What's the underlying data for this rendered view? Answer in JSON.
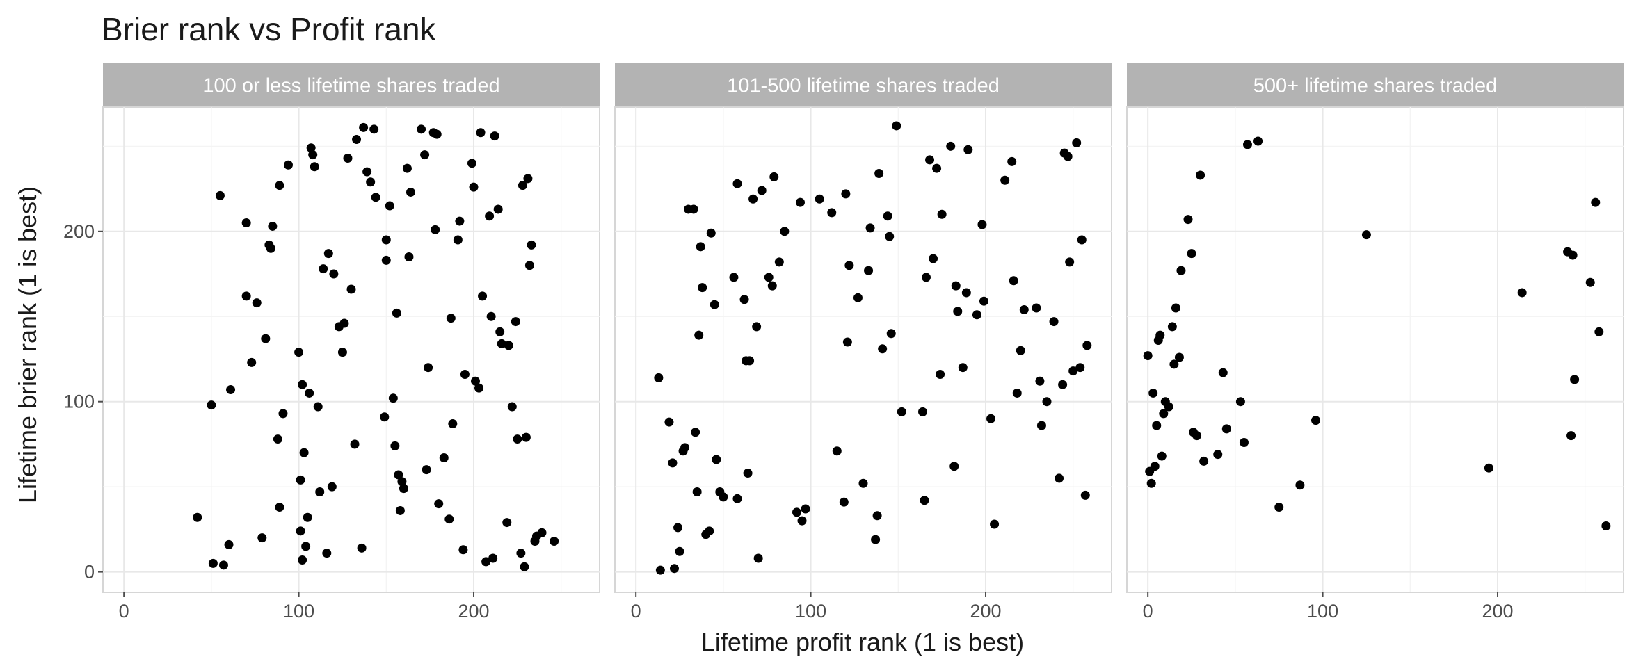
{
  "chart_data": {
    "type": "scatter",
    "title": "Brier rank vs Profit rank",
    "xlabel": "Lifetime profit rank (1 is best)",
    "ylabel": "Lifetime brier rank (1 is best)",
    "xlim": [
      -12,
      272
    ],
    "ylim": [
      -12,
      273
    ],
    "x_ticks": [
      "0",
      "100",
      "200"
    ],
    "y_ticks": [
      "0",
      "100",
      "200"
    ],
    "grid": true,
    "facets": [
      {
        "label": "100 or less lifetime shares traded",
        "points": [
          [
            42,
            32
          ],
          [
            50,
            98
          ],
          [
            51,
            5
          ],
          [
            55,
            221
          ],
          [
            57,
            4
          ],
          [
            60,
            16
          ],
          [
            61,
            107
          ],
          [
            70,
            205
          ],
          [
            70,
            162
          ],
          [
            73,
            123
          ],
          [
            76,
            158
          ],
          [
            79,
            20
          ],
          [
            81,
            137
          ],
          [
            83,
            192
          ],
          [
            84,
            190
          ],
          [
            85,
            203
          ],
          [
            88,
            78
          ],
          [
            89,
            38
          ],
          [
            89,
            227
          ],
          [
            91,
            93
          ],
          [
            94,
            239
          ],
          [
            100,
            129
          ],
          [
            101,
            24
          ],
          [
            101,
            54
          ],
          [
            102,
            110
          ],
          [
            102,
            7
          ],
          [
            103,
            70
          ],
          [
            104,
            15
          ],
          [
            105,
            32
          ],
          [
            106,
            105
          ],
          [
            107,
            249
          ],
          [
            108,
            245
          ],
          [
            109,
            238
          ],
          [
            111,
            97
          ],
          [
            112,
            47
          ],
          [
            114,
            178
          ],
          [
            116,
            11
          ],
          [
            117,
            187
          ],
          [
            119,
            50
          ],
          [
            120,
            175
          ],
          [
            123,
            144
          ],
          [
            125,
            129
          ],
          [
            126,
            146
          ],
          [
            128,
            243
          ],
          [
            130,
            166
          ],
          [
            132,
            75
          ],
          [
            133,
            254
          ],
          [
            136,
            14
          ],
          [
            137,
            261
          ],
          [
            139,
            235
          ],
          [
            141,
            229
          ],
          [
            143,
            260
          ],
          [
            144,
            220
          ],
          [
            149,
            91
          ],
          [
            150,
            183
          ],
          [
            150,
            195
          ],
          [
            152,
            215
          ],
          [
            154,
            102
          ],
          [
            155,
            74
          ],
          [
            156,
            152
          ],
          [
            157,
            57
          ],
          [
            158,
            36
          ],
          [
            159,
            53
          ],
          [
            160,
            49
          ],
          [
            162,
            237
          ],
          [
            163,
            185
          ],
          [
            164,
            223
          ],
          [
            170,
            260
          ],
          [
            172,
            245
          ],
          [
            173,
            60
          ],
          [
            174,
            120
          ],
          [
            177,
            258
          ],
          [
            178,
            201
          ],
          [
            179,
            257
          ],
          [
            180,
            40
          ],
          [
            183,
            67
          ],
          [
            186,
            31
          ],
          [
            187,
            149
          ],
          [
            188,
            87
          ],
          [
            191,
            195
          ],
          [
            192,
            206
          ],
          [
            194,
            13
          ],
          [
            195,
            116
          ],
          [
            199,
            240
          ],
          [
            200,
            226
          ],
          [
            201,
            112
          ],
          [
            203,
            108
          ],
          [
            204,
            258
          ],
          [
            205,
            162
          ],
          [
            207,
            6
          ],
          [
            209,
            209
          ],
          [
            210,
            150
          ],
          [
            211,
            8
          ],
          [
            212,
            256
          ],
          [
            214,
            213
          ],
          [
            215,
            141
          ],
          [
            216,
            134
          ],
          [
            219,
            29
          ],
          [
            220,
            133
          ],
          [
            222,
            97
          ],
          [
            224,
            147
          ],
          [
            225,
            78
          ],
          [
            227,
            11
          ],
          [
            228,
            227
          ],
          [
            229,
            3
          ],
          [
            230,
            79
          ],
          [
            231,
            231
          ],
          [
            232,
            180
          ],
          [
            233,
            192
          ],
          [
            235,
            18
          ],
          [
            236,
            21
          ],
          [
            239,
            23
          ],
          [
            246,
            18
          ]
        ]
      },
      {
        "label": "101-500 lifetime shares traded",
        "points": [
          [
            13,
            114
          ],
          [
            14,
            1
          ],
          [
            19,
            88
          ],
          [
            21,
            64
          ],
          [
            22,
            2
          ],
          [
            24,
            26
          ],
          [
            25,
            12
          ],
          [
            27,
            71
          ],
          [
            28,
            73
          ],
          [
            30,
            213
          ],
          [
            33,
            213
          ],
          [
            34,
            82
          ],
          [
            35,
            47
          ],
          [
            36,
            139
          ],
          [
            37,
            191
          ],
          [
            38,
            167
          ],
          [
            40,
            22
          ],
          [
            42,
            24
          ],
          [
            43,
            199
          ],
          [
            45,
            157
          ],
          [
            46,
            66
          ],
          [
            48,
            47
          ],
          [
            50,
            44
          ],
          [
            56,
            173
          ],
          [
            58,
            228
          ],
          [
            58,
            43
          ],
          [
            62,
            160
          ],
          [
            63,
            124
          ],
          [
            64,
            58
          ],
          [
            65,
            124
          ],
          [
            67,
            219
          ],
          [
            69,
            144
          ],
          [
            70,
            8
          ],
          [
            72,
            224
          ],
          [
            76,
            173
          ],
          [
            78,
            168
          ],
          [
            79,
            232
          ],
          [
            82,
            182
          ],
          [
            85,
            200
          ],
          [
            92,
            35
          ],
          [
            94,
            217
          ],
          [
            95,
            30
          ],
          [
            97,
            37
          ],
          [
            105,
            219
          ],
          [
            112,
            211
          ],
          [
            115,
            71
          ],
          [
            119,
            41
          ],
          [
            120,
            222
          ],
          [
            121,
            135
          ],
          [
            122,
            180
          ],
          [
            127,
            161
          ],
          [
            130,
            52
          ],
          [
            133,
            177
          ],
          [
            134,
            202
          ],
          [
            137,
            19
          ],
          [
            138,
            33
          ],
          [
            139,
            234
          ],
          [
            141,
            131
          ],
          [
            144,
            209
          ],
          [
            145,
            197
          ],
          [
            146,
            140
          ],
          [
            149,
            262
          ],
          [
            152,
            94
          ],
          [
            164,
            94
          ],
          [
            165,
            42
          ],
          [
            166,
            173
          ],
          [
            168,
            242
          ],
          [
            170,
            184
          ],
          [
            172,
            237
          ],
          [
            174,
            116
          ],
          [
            175,
            210
          ],
          [
            180,
            250
          ],
          [
            182,
            62
          ],
          [
            183,
            168
          ],
          [
            184,
            153
          ],
          [
            187,
            120
          ],
          [
            189,
            164
          ],
          [
            190,
            248
          ],
          [
            195,
            151
          ],
          [
            198,
            204
          ],
          [
            199,
            159
          ],
          [
            203,
            90
          ],
          [
            205,
            28
          ],
          [
            211,
            230
          ],
          [
            215,
            241
          ],
          [
            216,
            171
          ],
          [
            218,
            105
          ],
          [
            220,
            130
          ],
          [
            222,
            154
          ],
          [
            229,
            155
          ],
          [
            231,
            112
          ],
          [
            232,
            86
          ],
          [
            235,
            100
          ],
          [
            239,
            147
          ],
          [
            242,
            55
          ],
          [
            244,
            110
          ],
          [
            245,
            246
          ],
          [
            247,
            244
          ],
          [
            248,
            182
          ],
          [
            250,
            118
          ],
          [
            252,
            252
          ],
          [
            254,
            120
          ],
          [
            255,
            195
          ],
          [
            257,
            45
          ],
          [
            258,
            133
          ]
        ]
      },
      {
        "label": "500+ lifetime shares traded",
        "points": [
          [
            0,
            127
          ],
          [
            1,
            59
          ],
          [
            2,
            52
          ],
          [
            3,
            105
          ],
          [
            4,
            62
          ],
          [
            5,
            86
          ],
          [
            6,
            136
          ],
          [
            7,
            139
          ],
          [
            8,
            68
          ],
          [
            9,
            93
          ],
          [
            10,
            100
          ],
          [
            12,
            97
          ],
          [
            14,
            144
          ],
          [
            15,
            122
          ],
          [
            16,
            155
          ],
          [
            18,
            126
          ],
          [
            19,
            177
          ],
          [
            23,
            207
          ],
          [
            25,
            187
          ],
          [
            26,
            82
          ],
          [
            28,
            80
          ],
          [
            30,
            233
          ],
          [
            32,
            65
          ],
          [
            40,
            69
          ],
          [
            43,
            117
          ],
          [
            45,
            84
          ],
          [
            53,
            100
          ],
          [
            55,
            76
          ],
          [
            57,
            251
          ],
          [
            63,
            253
          ],
          [
            75,
            38
          ],
          [
            87,
            51
          ],
          [
            96,
            89
          ],
          [
            125,
            198
          ],
          [
            195,
            61
          ],
          [
            214,
            164
          ],
          [
            240,
            188
          ],
          [
            242,
            80
          ],
          [
            243,
            186
          ],
          [
            244,
            113
          ],
          [
            253,
            170
          ],
          [
            256,
            217
          ],
          [
            258,
            141
          ],
          [
            262,
            27
          ]
        ]
      }
    ]
  }
}
